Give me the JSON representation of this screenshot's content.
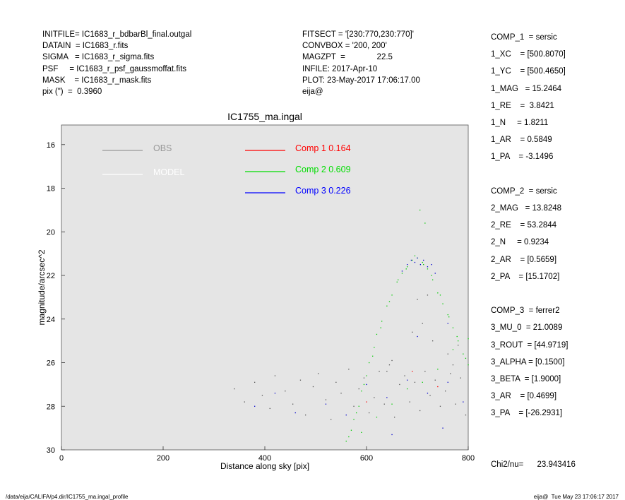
{
  "header_left": [
    "INITFILE= IC1683_r_bdbarBl_final.outgal",
    "DATAIN  = IC1683_r.fits",
    "SIGMA   = IC1683_r_sigma.fits",
    "PSF     = IC1683_r_psf_gaussmoffat.fits",
    "MASK    = IC1683_r_mask.fits",
    "pix (\")  =  0.3960"
  ],
  "header_mid": [
    "FITSECT = '[230:770,230:770]'",
    "CONVBOX = '200, 200'",
    "MAGZPT  =              22.5",
    "INFILE: 2017-Apr-10",
    "PLOT: 23-May-2017 17:06:17.00",
    "eija@"
  ],
  "params": [
    "COMP_1  = sersic",
    "1_XC    = [500.8070]",
    "1_YC    = [500.4650]",
    "1_MAG   = 15.2464",
    "1_RE    =  3.8421",
    "1_N     = 1.8211",
    "1_AR    = 0.5849",
    "1_PA    = -3.1496",
    "",
    "COMP_2  = sersic",
    "2_MAG   = 13.8248",
    "2_RE    = 53.2844",
    "2_N     = 0.9234",
    "2_AR    = [0.5659]",
    "2_PA    = [15.1702]",
    "",
    "COMP_3  = ferrer2",
    "3_MU_0  = 21.0089",
    "3_ROUT  = [44.9719]",
    "3_ALPHA = [0.1500]",
    "3_BETA  = [1.9000]",
    "3_AR    = [0.4699]",
    "3_PA    = [-26.2931]",
    "",
    "",
    "Chi2/nu=      23.943416"
  ],
  "footer": {
    "left": "/data/eija/CALIFA/p4.dir/IC1755_ma.ingal_profile",
    "right": "eija@  Tue May 23 17:06:17 2017"
  },
  "chart_data": {
    "type": "scatter",
    "title": "IC1755_ma.ingal",
    "xlabel": "Distance along sky [pix]",
    "ylabel": "magnitude/arcsec^2",
    "xlim": [
      0,
      800
    ],
    "ylim": [
      30,
      15.1
    ],
    "y_inverted": true,
    "xticks": [
      0,
      200,
      400,
      600,
      800
    ],
    "yticks": [
      16,
      18,
      20,
      22,
      24,
      26,
      28,
      30
    ],
    "background": "#e5e5e5",
    "legend": [
      {
        "label": "OBS",
        "color": "#999999"
      },
      {
        "label": "MODEL",
        "color": "#ffffff"
      },
      {
        "label": "Comp 1  0.164",
        "color": "#ff0000"
      },
      {
        "label": "Comp 2  0.609",
        "color": "#00dd00"
      },
      {
        "label": "Comp 3  0.226",
        "color": "#0000ff"
      }
    ],
    "series": [
      {
        "name": "OBS",
        "color": "#555555",
        "points": [
          [
            340,
            27.2
          ],
          [
            360,
            27.8
          ],
          [
            380,
            26.9
          ],
          [
            395,
            27.5
          ],
          [
            410,
            28.1
          ],
          [
            420,
            26.6
          ],
          [
            440,
            27.3
          ],
          [
            455,
            27.9
          ],
          [
            470,
            26.8
          ],
          [
            480,
            28.4
          ],
          [
            495,
            27.1
          ],
          [
            505,
            26.5
          ],
          [
            520,
            27.7
          ],
          [
            530,
            28.6
          ],
          [
            540,
            26.9
          ],
          [
            550,
            27.4
          ],
          [
            565,
            26.3
          ],
          [
            575,
            28.0
          ],
          [
            585,
            27.2
          ],
          [
            595,
            26.7
          ],
          [
            605,
            28.3
          ],
          [
            615,
            27.6
          ],
          [
            625,
            26.4
          ],
          [
            635,
            27.9
          ],
          [
            645,
            26.1
          ],
          [
            655,
            28.5
          ],
          [
            665,
            27.0
          ],
          [
            675,
            26.6
          ],
          [
            685,
            27.8
          ],
          [
            695,
            26.9
          ],
          [
            705,
            28.2
          ],
          [
            715,
            26.4
          ],
          [
            725,
            27.5
          ],
          [
            735,
            26.8
          ],
          [
            745,
            28.0
          ],
          [
            755,
            27.3
          ],
          [
            765,
            26.5
          ],
          [
            775,
            27.9
          ],
          [
            785,
            26.7
          ],
          [
            795,
            28.4
          ],
          [
            700,
            23.1
          ],
          [
            710,
            24.2
          ],
          [
            720,
            22.9
          ],
          [
            730,
            25.0
          ],
          [
            690,
            24.6
          ],
          [
            760,
            25.6
          ],
          [
            780,
            25.2
          ],
          [
            770,
            26.1
          ],
          [
            650,
            25.9
          ],
          [
            640,
            26.4
          ]
        ]
      },
      {
        "name": "Comp 1",
        "color": "#ff0000",
        "points": [
          [
            600,
            27.8
          ],
          [
            690,
            26.4
          ],
          [
            740,
            27.1
          ]
        ]
      },
      {
        "name": "Comp 2",
        "color": "#00cc00",
        "points": [
          [
            560,
            29.6
          ],
          [
            570,
            29.1
          ],
          [
            575,
            28.6
          ],
          [
            585,
            28.0
          ],
          [
            590,
            27.3
          ],
          [
            600,
            26.6
          ],
          [
            605,
            26.0
          ],
          [
            615,
            25.3
          ],
          [
            620,
            24.7
          ],
          [
            630,
            24.1
          ],
          [
            640,
            23.4
          ],
          [
            650,
            22.9
          ],
          [
            660,
            22.3
          ],
          [
            670,
            21.9
          ],
          [
            680,
            21.6
          ],
          [
            690,
            21.3
          ],
          [
            700,
            21.2
          ],
          [
            710,
            21.4
          ],
          [
            720,
            21.7
          ],
          [
            730,
            22.2
          ],
          [
            740,
            22.8
          ],
          [
            750,
            23.3
          ],
          [
            760,
            23.8
          ],
          [
            770,
            24.4
          ],
          [
            780,
            25.0
          ],
          [
            790,
            25.6
          ],
          [
            800,
            26.1
          ],
          [
            565,
            29.4
          ],
          [
            580,
            28.3
          ],
          [
            595,
            27.0
          ],
          [
            612,
            25.7
          ],
          [
            628,
            24.4
          ],
          [
            645,
            23.2
          ],
          [
            662,
            22.2
          ],
          [
            678,
            21.7
          ],
          [
            695,
            21.1
          ],
          [
            712,
            21.5
          ],
          [
            728,
            22.0
          ],
          [
            745,
            22.9
          ],
          [
            762,
            23.9
          ],
          [
            778,
            24.8
          ],
          [
            795,
            25.8
          ],
          [
            590,
            29.2
          ],
          [
            620,
            28.5
          ],
          [
            650,
            27.9
          ],
          [
            680,
            27.2
          ],
          [
            710,
            26.9
          ],
          [
            740,
            26.3
          ],
          [
            770,
            25.4
          ],
          [
            800,
            24.9
          ],
          [
            705,
            19.0
          ],
          [
            715,
            19.6
          ]
        ]
      },
      {
        "name": "Comp 3",
        "color": "#0000cc",
        "points": [
          [
            680,
            21.5
          ],
          [
            688,
            21.3
          ],
          [
            695,
            21.4
          ],
          [
            700,
            21.2
          ],
          [
            706,
            21.5
          ],
          [
            712,
            21.3
          ],
          [
            720,
            21.6
          ],
          [
            728,
            21.5
          ],
          [
            670,
            21.8
          ],
          [
            735,
            21.9
          ],
          [
            600,
            27.0
          ],
          [
            640,
            27.6
          ],
          [
            680,
            26.8
          ],
          [
            720,
            27.4
          ],
          [
            760,
            26.9
          ],
          [
            790,
            27.8
          ],
          [
            560,
            28.4
          ],
          [
            520,
            27.9
          ],
          [
            460,
            28.3
          ],
          [
            420,
            27.4
          ],
          [
            380,
            28.0
          ],
          [
            650,
            29.3
          ],
          [
            750,
            29.0
          ],
          [
            700,
            24.8
          ],
          [
            760,
            24.2
          ]
        ]
      }
    ]
  }
}
